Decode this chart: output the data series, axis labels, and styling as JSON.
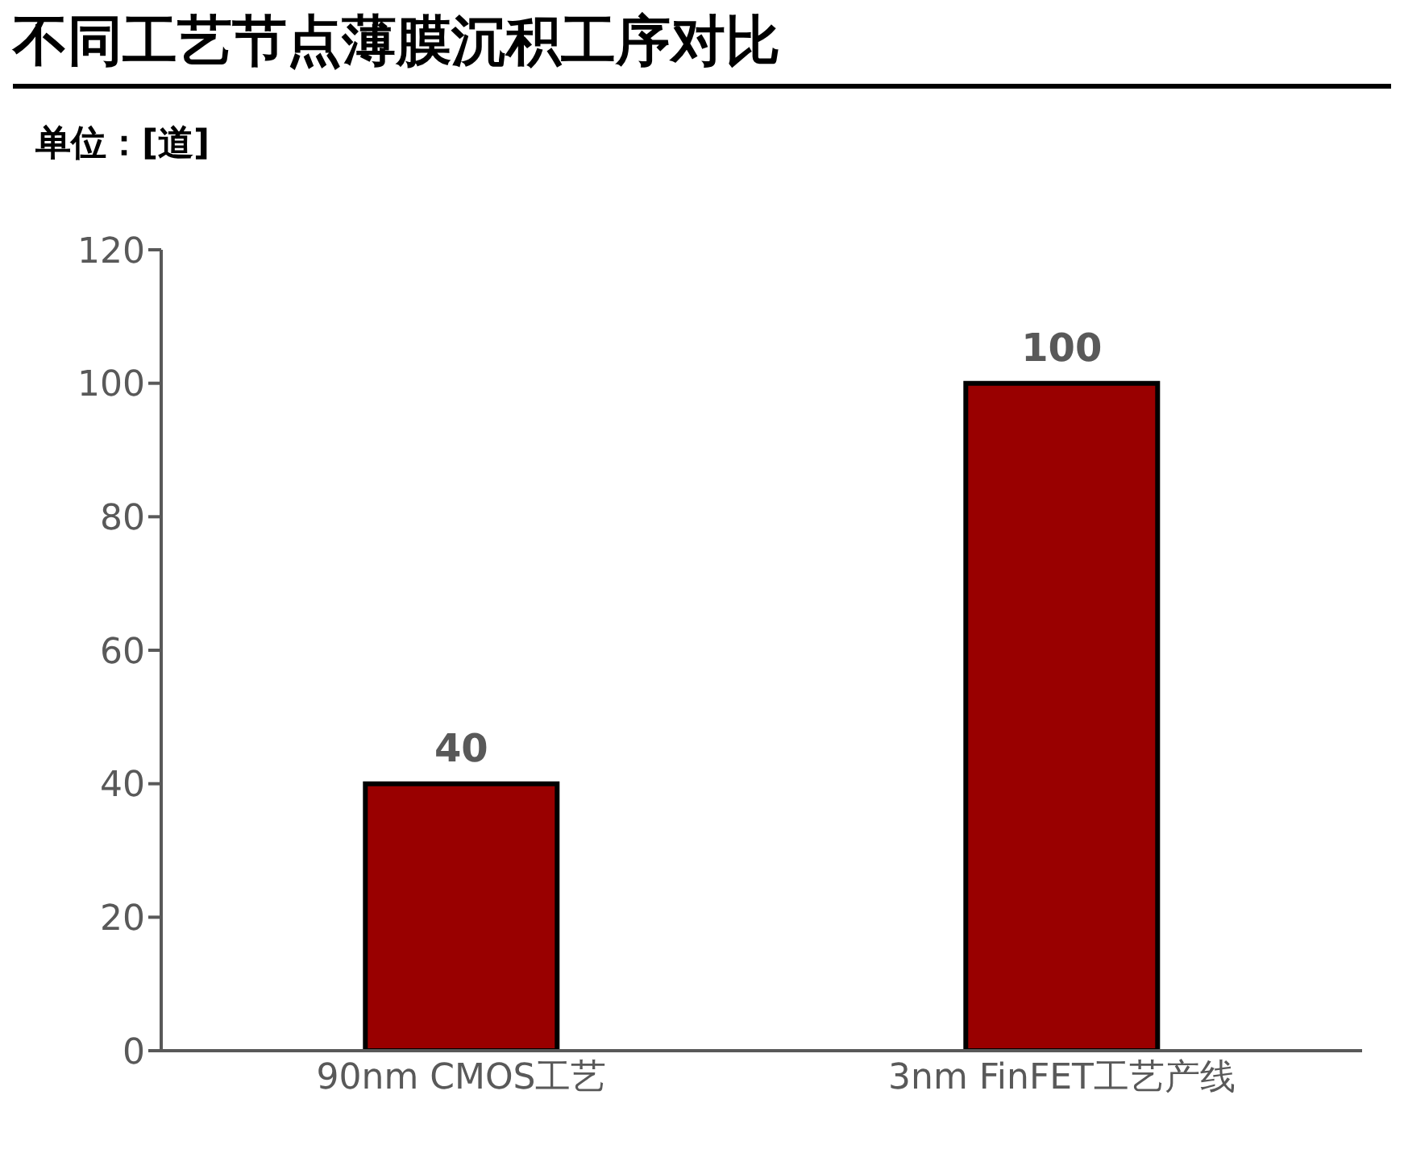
{
  "chart_data": {
    "type": "bar",
    "title": "不同工艺节点薄膜沉积工序对比",
    "subtitle": "单位：[道]",
    "categories": [
      "90nm CMOS工艺",
      "3nm FinFET工艺产线"
    ],
    "values": [
      40,
      100
    ],
    "color": "#990000",
    "ylim": [
      0,
      120
    ],
    "yticks": [
      0,
      20,
      40,
      60,
      80,
      100,
      120
    ],
    "grid": false,
    "data_labels": true,
    "legend": false
  }
}
